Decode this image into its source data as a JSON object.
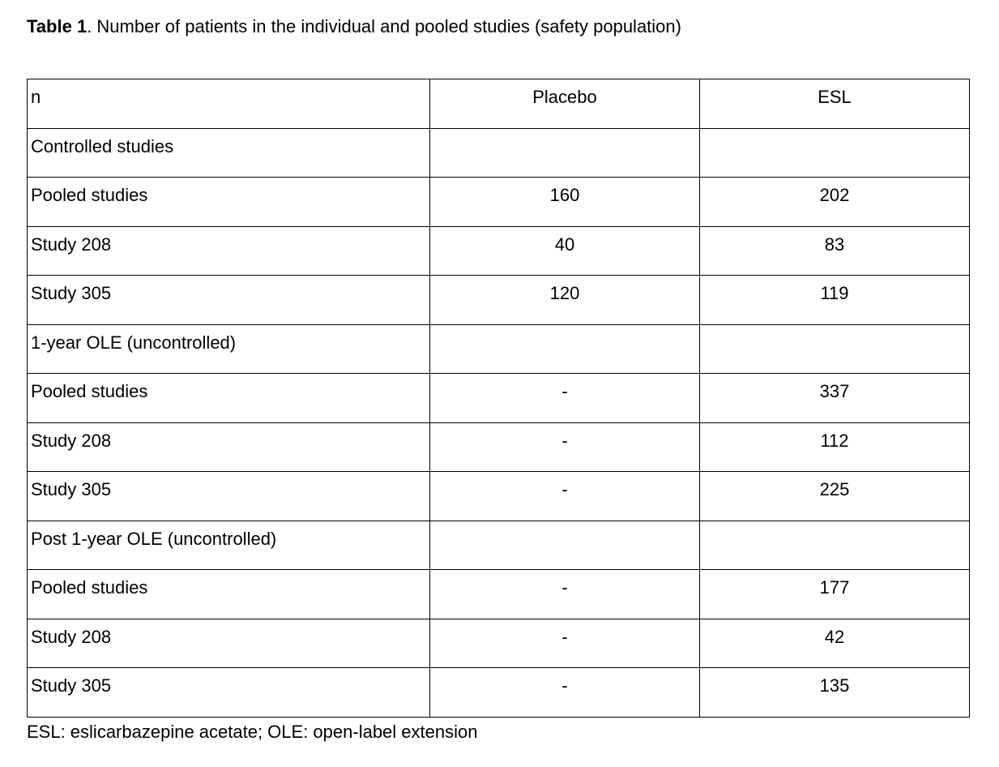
{
  "title": {
    "label": "Table 1",
    "rest": ". Number of patients in the individual and pooled studies (safety population)"
  },
  "table": {
    "header": {
      "n": "n",
      "placebo": "Placebo",
      "esl": "ESL"
    },
    "rows": [
      {
        "label": "Controlled studies",
        "placebo": "",
        "esl": ""
      },
      {
        "label": "Pooled studies",
        "placebo": "160",
        "esl": "202"
      },
      {
        "label": "Study 208",
        "placebo": "40",
        "esl": "83"
      },
      {
        "label": "Study 305",
        "placebo": "120",
        "esl": "119"
      },
      {
        "label": "1-year OLE (uncontrolled)",
        "placebo": "",
        "esl": ""
      },
      {
        "label": "Pooled studies",
        "placebo": "-",
        "esl": "337"
      },
      {
        "label": "Study 208",
        "placebo": "-",
        "esl": "112"
      },
      {
        "label": "Study 305",
        "placebo": "-",
        "esl": "225"
      },
      {
        "label": "Post 1-year OLE (uncontrolled)",
        "placebo": "-",
        "esl": ""
      },
      {
        "label": "Pooled studies",
        "placebo": "-",
        "esl": "177"
      },
      {
        "label": "Study 208",
        "placebo": "-",
        "esl": "42"
      },
      {
        "label": "Study 305",
        "placebo": "-",
        "esl": "135"
      }
    ]
  },
  "footnote": "ESL: eslicarbazepine acetate; OLE: open-label extension",
  "colors": {
    "text": "#000000",
    "border": "#000000",
    "background": "#ffffff"
  }
}
